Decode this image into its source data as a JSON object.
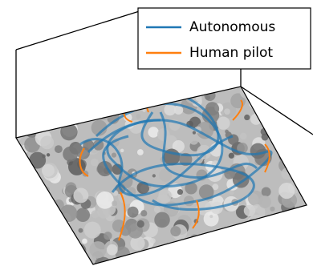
{
  "legend": {
    "items": [
      {
        "label": "Autonomous",
        "color": "#1f77b4"
      },
      {
        "label": "Human pilot",
        "color": "#ff7f0e"
      }
    ]
  }
}
